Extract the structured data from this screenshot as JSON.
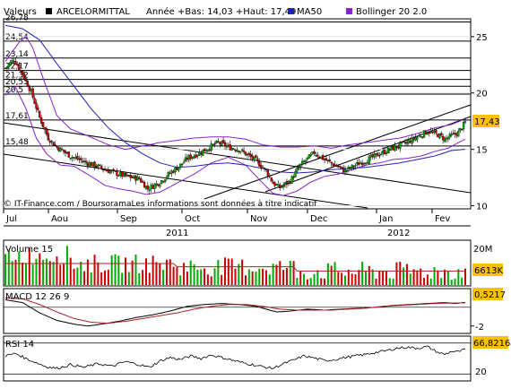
{
  "header": {
    "valeurs_label": "Valeurs",
    "stock_name": "ARCELORMITTAL",
    "range_text": "Année +Bas: 14,03 +Haut: 17,49",
    "ma_label": "MA50",
    "bollinger_label": "Bollinger 20 2.0"
  },
  "main": {
    "credit": "© IT-Finance.com / BoursoramaLes informations sont données à titre indicatif",
    "last_price_badge": "17,43"
  },
  "volume_panel": {
    "title": "Volume 15",
    "axis_top": "20M",
    "last_badge": "6613K"
  },
  "macd_panel": {
    "title": "MACD 12 26 9",
    "axis_bottom": "-2",
    "last_badge": "0,5217"
  },
  "rsi_panel": {
    "title": "RSI 14",
    "axis_bottom": "20",
    "last_badge": "66,8216"
  },
  "colors": {
    "up": "#00aa00",
    "down": "#cc0000",
    "ma50": "#2222bb",
    "bollinger": "#8822cc",
    "volume_avg": "#aa2222",
    "macd_signal": "#aa2222",
    "badge_bg": "#ffc000",
    "grid": "#e0e0e0"
  },
  "chart_data": [
    {
      "type": "candlestick",
      "title": "ARCELORMITTAL",
      "x_tick_labels": [
        "Jul",
        "Aou",
        "Sep",
        "Oct",
        "Nov",
        "Dec",
        "Jan",
        "Fev"
      ],
      "year_labels": [
        "2011",
        "2012"
      ],
      "y_tick_labels": [
        "10",
        "15",
        "20",
        "25"
      ],
      "ylim": [
        9.8,
        26.5
      ],
      "fib_levels": [
        {
          "label": "26,78",
          "value": 26.3
        },
        {
          "label": "24,54",
          "value": 24.6
        },
        {
          "label": "23,14",
          "value": 23.1
        },
        {
          "label": "22,17",
          "value": 22.0
        },
        {
          "label": "21,32",
          "value": 21.2
        },
        {
          "label": "20,55",
          "value": 20.6
        },
        {
          "label": "20,5",
          "value": 19.9
        },
        {
          "label": "17,61",
          "value": 17.6
        },
        {
          "label": "15,48",
          "value": 15.3
        }
      ],
      "price_anchors": [
        [
          0,
          22.2
        ],
        [
          5,
          23.0
        ],
        [
          10,
          21.7
        ],
        [
          15,
          20.1
        ],
        [
          20,
          17.8
        ],
        [
          25,
          16.0
        ],
        [
          30,
          15.2
        ],
        [
          38,
          14.4
        ],
        [
          46,
          13.9
        ],
        [
          55,
          13.4
        ],
        [
          62,
          13.0
        ],
        [
          70,
          12.6
        ],
        [
          78,
          12.4
        ],
        [
          83,
          11.5
        ],
        [
          90,
          12.1
        ],
        [
          96,
          12.9
        ],
        [
          102,
          13.6
        ],
        [
          106,
          14.2
        ],
        [
          112,
          14.6
        ],
        [
          118,
          15.1
        ],
        [
          124,
          15.6
        ],
        [
          130,
          15.2
        ],
        [
          136,
          15.0
        ],
        [
          140,
          14.6
        ],
        [
          146,
          14.0
        ],
        [
          152,
          13.1
        ],
        [
          156,
          12.0
        ],
        [
          160,
          11.6
        ],
        [
          166,
          12.2
        ],
        [
          172,
          13.6
        ],
        [
          180,
          14.7
        ],
        [
          186,
          14.1
        ],
        [
          192,
          13.6
        ],
        [
          198,
          13.1
        ],
        [
          204,
          13.6
        ],
        [
          210,
          14.0
        ],
        [
          218,
          14.6
        ],
        [
          226,
          15.1
        ],
        [
          234,
          15.6
        ],
        [
          240,
          16.1
        ],
        [
          246,
          16.6
        ],
        [
          252,
          16.3
        ],
        [
          256,
          15.9
        ],
        [
          260,
          16.2
        ],
        [
          264,
          16.5
        ],
        [
          268,
          17.4
        ]
      ],
      "ma50_anchors": [
        [
          0,
          26.0
        ],
        [
          10,
          25.7
        ],
        [
          20,
          24.7
        ],
        [
          30,
          22.6
        ],
        [
          40,
          20.6
        ],
        [
          50,
          18.6
        ],
        [
          60,
          16.9
        ],
        [
          70,
          15.6
        ],
        [
          80,
          14.6
        ],
        [
          90,
          13.8
        ],
        [
          100,
          13.4
        ],
        [
          110,
          13.5
        ],
        [
          120,
          13.7
        ],
        [
          130,
          13.8
        ],
        [
          140,
          13.6
        ],
        [
          150,
          13.3
        ],
        [
          160,
          13.0
        ],
        [
          170,
          12.9
        ],
        [
          180,
          13.0
        ],
        [
          190,
          13.2
        ],
        [
          200,
          13.3
        ],
        [
          210,
          13.4
        ],
        [
          220,
          13.6
        ],
        [
          230,
          13.8
        ],
        [
          240,
          14.1
        ],
        [
          250,
          14.4
        ],
        [
          260,
          14.9
        ],
        [
          268,
          15.0
        ]
      ],
      "bollinger_upper_anchors": [
        [
          0,
          22.8
        ],
        [
          8,
          24.5
        ],
        [
          12,
          25.0
        ],
        [
          16,
          24.0
        ],
        [
          22,
          21.3
        ],
        [
          30,
          18.0
        ],
        [
          38,
          16.8
        ],
        [
          48,
          16.2
        ],
        [
          60,
          15.4
        ],
        [
          70,
          15.0
        ],
        [
          80,
          15.3
        ],
        [
          90,
          15.6
        ],
        [
          100,
          15.8
        ],
        [
          110,
          16.0
        ],
        [
          120,
          16.1
        ],
        [
          130,
          16.1
        ],
        [
          140,
          15.9
        ],
        [
          150,
          15.4
        ],
        [
          160,
          15.2
        ],
        [
          170,
          15.2
        ],
        [
          180,
          15.3
        ],
        [
          190,
          15.1
        ],
        [
          200,
          15.4
        ],
        [
          210,
          15.6
        ],
        [
          220,
          15.8
        ],
        [
          230,
          16.0
        ],
        [
          240,
          16.4
        ],
        [
          250,
          16.9
        ],
        [
          260,
          17.2
        ],
        [
          268,
          17.7
        ]
      ],
      "bollinger_lower_anchors": [
        [
          0,
          19.8
        ],
        [
          6,
          20.5
        ],
        [
          12,
          18.6
        ],
        [
          18,
          16.0
        ],
        [
          24,
          14.6
        ],
        [
          32,
          13.6
        ],
        [
          40,
          13.5
        ],
        [
          50,
          12.6
        ],
        [
          58,
          11.8
        ],
        [
          66,
          11.5
        ],
        [
          74,
          11.3
        ],
        [
          82,
          11.0
        ],
        [
          90,
          11.2
        ],
        [
          100,
          12.0
        ],
        [
          110,
          12.8
        ],
        [
          120,
          13.8
        ],
        [
          130,
          14.3
        ],
        [
          140,
          13.6
        ],
        [
          150,
          12.0
        ],
        [
          156,
          11.1
        ],
        [
          162,
          10.9
        ],
        [
          170,
          11.3
        ],
        [
          178,
          12.1
        ],
        [
          186,
          12.6
        ],
        [
          194,
          12.8
        ],
        [
          202,
          13.2
        ],
        [
          210,
          13.6
        ],
        [
          218,
          13.8
        ],
        [
          226,
          14.1
        ],
        [
          234,
          14.2
        ],
        [
          242,
          14.4
        ],
        [
          250,
          14.8
        ],
        [
          258,
          15.1
        ],
        [
          264,
          15.6
        ],
        [
          268,
          15.9
        ]
      ]
    },
    {
      "type": "bar",
      "title": "Volume 15",
      "ylim": [
        0,
        20
      ],
      "y_tick_labels": [
        "20M"
      ]
    },
    {
      "type": "line",
      "title": "MACD 12 26 9",
      "ylim": [
        -2.6,
        1.8
      ],
      "y_tick_labels": [
        "-2"
      ],
      "macd_anchors": [
        [
          0,
          0.8
        ],
        [
          10,
          0.5
        ],
        [
          20,
          -0.6
        ],
        [
          30,
          -1.4
        ],
        [
          40,
          -1.8
        ],
        [
          48,
          -2.0
        ],
        [
          56,
          -1.8
        ],
        [
          66,
          -1.5
        ],
        [
          76,
          -1.1
        ],
        [
          86,
          -0.8
        ],
        [
          96,
          -0.4
        ],
        [
          106,
          0.1
        ],
        [
          116,
          0.3
        ],
        [
          126,
          0.4
        ],
        [
          136,
          0.3
        ],
        [
          146,
          0.1
        ],
        [
          152,
          -0.2
        ],
        [
          158,
          -0.5
        ],
        [
          166,
          -0.4
        ],
        [
          176,
          -0.2
        ],
        [
          186,
          -0.3
        ],
        [
          196,
          -0.2
        ],
        [
          206,
          -0.1
        ],
        [
          216,
          0.0
        ],
        [
          226,
          0.2
        ],
        [
          236,
          0.3
        ],
        [
          246,
          0.4
        ],
        [
          256,
          0.5
        ],
        [
          262,
          0.4
        ],
        [
          268,
          0.52
        ]
      ],
      "signal_anchors": [
        [
          0,
          1.0
        ],
        [
          10,
          0.9
        ],
        [
          20,
          0.3
        ],
        [
          30,
          -0.5
        ],
        [
          40,
          -1.2
        ],
        [
          50,
          -1.6
        ],
        [
          60,
          -1.7
        ],
        [
          70,
          -1.5
        ],
        [
          80,
          -1.2
        ],
        [
          90,
          -0.9
        ],
        [
          100,
          -0.6
        ],
        [
          110,
          -0.2
        ],
        [
          120,
          0.1
        ],
        [
          130,
          0.3
        ],
        [
          140,
          0.3
        ],
        [
          150,
          0.1
        ],
        [
          160,
          -0.2
        ],
        [
          170,
          -0.3
        ],
        [
          180,
          -0.3
        ],
        [
          190,
          -0.3
        ],
        [
          200,
          -0.2
        ],
        [
          210,
          -0.1
        ],
        [
          220,
          0.1
        ],
        [
          230,
          0.2
        ],
        [
          240,
          0.3
        ],
        [
          250,
          0.4
        ],
        [
          260,
          0.45
        ],
        [
          268,
          0.47
        ]
      ]
    },
    {
      "type": "line",
      "title": "RSI 14",
      "ylim": [
        10,
        90
      ],
      "y_tick_labels": [
        "20"
      ],
      "rsi_anchors": [
        [
          0,
          55
        ],
        [
          6,
          60
        ],
        [
          12,
          50
        ],
        [
          18,
          42
        ],
        [
          24,
          34
        ],
        [
          30,
          31
        ],
        [
          38,
          38
        ],
        [
          46,
          33
        ],
        [
          54,
          40
        ],
        [
          62,
          35
        ],
        [
          70,
          44
        ],
        [
          78,
          38
        ],
        [
          84,
          33
        ],
        [
          90,
          45
        ],
        [
          96,
          52
        ],
        [
          102,
          48
        ],
        [
          108,
          55
        ],
        [
          114,
          50
        ],
        [
          120,
          57
        ],
        [
          126,
          52
        ],
        [
          132,
          47
        ],
        [
          138,
          42
        ],
        [
          144,
          38
        ],
        [
          150,
          34
        ],
        [
          156,
          31
        ],
        [
          162,
          40
        ],
        [
          168,
          47
        ],
        [
          174,
          55
        ],
        [
          180,
          51
        ],
        [
          186,
          46
        ],
        [
          192,
          48
        ],
        [
          198,
          52
        ],
        [
          204,
          55
        ],
        [
          210,
          58
        ],
        [
          216,
          62
        ],
        [
          222,
          65
        ],
        [
          228,
          70
        ],
        [
          234,
          72
        ],
        [
          240,
          70
        ],
        [
          246,
          73
        ],
        [
          252,
          62
        ],
        [
          256,
          58
        ],
        [
          260,
          64
        ],
        [
          264,
          63
        ],
        [
          268,
          68
        ]
      ]
    }
  ]
}
